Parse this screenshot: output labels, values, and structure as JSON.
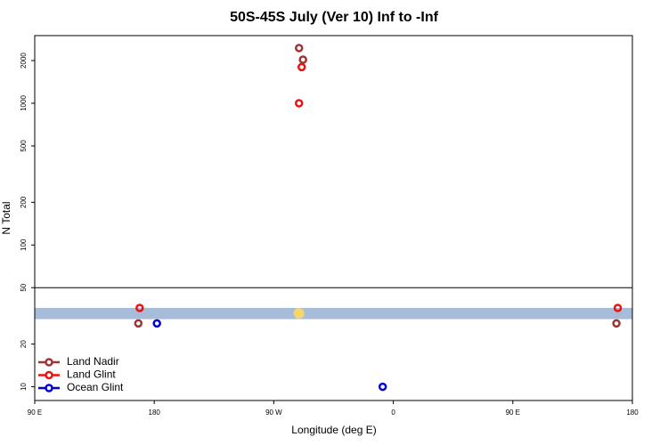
{
  "chart_data": {
    "type": "scatter",
    "title": "50S-45S July (Ver 10)   Inf to -Inf",
    "x_label": "Longitude (deg E)",
    "y_label": "N Total",
    "xlim": [
      90,
      540
    ],
    "xticks": [
      {
        "value": 90,
        "label": "90 E"
      },
      {
        "value": 180,
        "label": "180"
      },
      {
        "value": 270,
        "label": "90 W"
      },
      {
        "value": 360,
        "label": "0"
      },
      {
        "value": 450,
        "label": "90 E"
      },
      {
        "value": 540,
        "label": "180"
      }
    ],
    "ylim": [
      8,
      3000
    ],
    "y_log": true,
    "yticks": [
      10,
      20,
      50,
      100,
      200,
      500,
      1000,
      2000
    ],
    "hline": 50,
    "band": {
      "range": [
        30,
        36
      ],
      "color": "#a7bcd9"
    },
    "highlight": {
      "x": 289,
      "y": 33,
      "color": "#f5d76e"
    },
    "legend": "bottom-left",
    "series": [
      {
        "name": "Land Nadir",
        "color": "#9e3434",
        "x": [
          289,
          292,
          168,
          528
        ],
        "values": [
          2450,
          2030,
          28,
          28
        ]
      },
      {
        "name": "Land Glint",
        "color": "#ee1111",
        "x": [
          291,
          289,
          169,
          529
        ],
        "values": [
          1800,
          1000,
          36,
          36
        ]
      },
      {
        "name": "Ocean Glint",
        "color": "#0000dd",
        "x": [
          182,
          352
        ],
        "values": [
          28,
          10
        ]
      }
    ]
  }
}
